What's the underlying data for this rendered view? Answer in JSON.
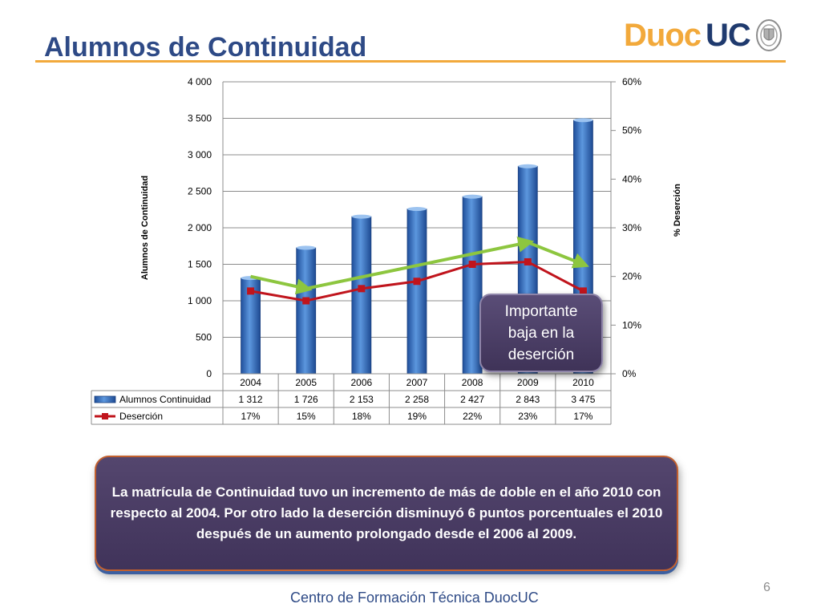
{
  "slide": {
    "title": "Alumnos de Continuidad",
    "logo_left": "Duoc",
    "logo_right": "UC",
    "callout": "Importante baja en la deserción",
    "summary": "La matrícula de Continuidad tuvo un incremento de más de doble en el año 2010 con respecto al 2004. Por otro lado la deserción disminuyó 6 puntos porcentuales el 2010 después de un aumento prolongado desde el 2006 al 2009.",
    "footer": "Centro de Formación Técnica DuocUC",
    "page_number": "6"
  },
  "colors": {
    "title": "#2E4A86",
    "rule": "#F2A93B",
    "bar": "#3C78C8",
    "line": "#C0141C",
    "arrow": "#8DC63F",
    "box": "#4A3D63"
  },
  "chart_data": {
    "type": "bar",
    "categories": [
      "2004",
      "2005",
      "2006",
      "2007",
      "2008",
      "2009",
      "2010"
    ],
    "ylabel": "Alumnos  de  Continuidad",
    "y2label": "% Deserción",
    "ylim": [
      0,
      4000
    ],
    "y2lim": [
      0,
      60
    ],
    "yticks": [
      "0",
      "500",
      "1 000",
      "1 500",
      "2 000",
      "2 500",
      "3 000",
      "3 500",
      "4 000"
    ],
    "y2ticks": [
      "0%",
      "10%",
      "20%",
      "30%",
      "40%",
      "50%",
      "60%"
    ],
    "grid": true,
    "series": [
      {
        "name": "Alumnos Continuidad",
        "type": "bar",
        "axis": "left",
        "values": [
          1312,
          1726,
          2153,
          2258,
          2427,
          2843,
          3475
        ],
        "labels": [
          "1 312",
          "1 726",
          "2 153",
          "2 258",
          "2 427",
          "2 843",
          "3 475"
        ]
      },
      {
        "name": "Deserción",
        "type": "line",
        "axis": "right",
        "values": [
          17,
          15,
          17.5,
          19,
          22.5,
          23,
          17
        ],
        "labels": [
          "17%",
          "15%",
          "18%",
          "19%",
          "22%",
          "23%",
          "17%"
        ]
      }
    ],
    "trend_arrows": [
      {
        "from": [
          "2004",
          20
        ],
        "to": [
          "2005",
          17.5
        ]
      },
      {
        "from": [
          "2005",
          17.5
        ],
        "to": [
          "2009",
          27
        ]
      },
      {
        "from": [
          "2009",
          27
        ],
        "to": [
          "2010",
          22.5
        ]
      }
    ]
  }
}
